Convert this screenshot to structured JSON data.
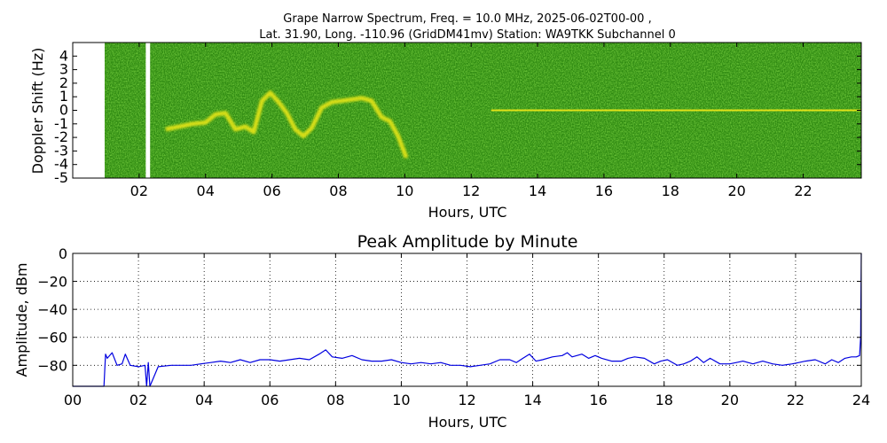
{
  "chart_data": [
    {
      "type": "heatmap",
      "title_lines": [
        "Grape Narrow Spectrum, Freq. = 10.0 MHz, 2025-06-02T00-00 ,",
        "Lat.  31.90, Long. -110.96 (GridDM41mv) Station: WA9TKK Subchannel 0"
      ],
      "xlabel": "Hours, UTC",
      "ylabel": "Doppler Shift (Hz)",
      "xlim": [
        0,
        23.75
      ],
      "ylim": [
        -5,
        5
      ],
      "xticks": [
        2,
        4,
        6,
        8,
        10,
        12,
        14,
        16,
        18,
        20,
        22
      ],
      "xtick_labels": [
        "02",
        "04",
        "06",
        "08",
        "10",
        "12",
        "14",
        "16",
        "18",
        "20",
        "22"
      ],
      "yticks": [
        4,
        3,
        2,
        1,
        0,
        -1,
        -2,
        -3,
        -4,
        -5
      ],
      "ytick_labels": [
        "4",
        "3",
        "2",
        "1",
        "0",
        "-1",
        "-2",
        "-3",
        "-4",
        "-5"
      ],
      "data_gaps_hours": [
        [
          0,
          0.9
        ],
        [
          2.2,
          2.33
        ]
      ],
      "colors": {
        "background": "#2f8a12",
        "signal": "#f2ea18",
        "noise_dark": "#1d5a08",
        "noise_light": "#5db820"
      },
      "doppler_trace": {
        "x": [
          2.8,
          3.2,
          3.6,
          4.0,
          4.3,
          4.6,
          4.9,
          5.2,
          5.45,
          5.7,
          5.95,
          6.2,
          6.45,
          6.7,
          6.95,
          7.2,
          7.5,
          7.8,
          8.1,
          8.4,
          8.7,
          9.0,
          9.3,
          9.55,
          9.8,
          10.05
        ],
        "y": [
          -1.4,
          -1.2,
          -1.0,
          -0.9,
          -0.3,
          -0.2,
          -1.4,
          -1.2,
          -1.6,
          0.7,
          1.3,
          0.6,
          -0.2,
          -1.4,
          -1.9,
          -1.3,
          0.2,
          0.6,
          0.7,
          0.8,
          0.9,
          0.7,
          -0.5,
          -0.8,
          -1.9,
          -3.5
        ]
      },
      "carrier_line": {
        "x_start": 12.6,
        "x_end": 23.75,
        "y": 0
      }
    },
    {
      "type": "line",
      "title": "Peak Amplitude by Minute",
      "xlabel": "Hours, UTC",
      "ylabel": "Amplitude, dBm",
      "xlim": [
        0,
        24
      ],
      "ylim": [
        -95,
        0
      ],
      "xticks": [
        0,
        2,
        4,
        6,
        8,
        10,
        12,
        14,
        16,
        18,
        20,
        22,
        24
      ],
      "xtick_labels": [
        "00",
        "02",
        "04",
        "06",
        "08",
        "10",
        "12",
        "14",
        "16",
        "18",
        "20",
        "22",
        "24"
      ],
      "yticks": [
        0,
        -20,
        -40,
        -60,
        -80
      ],
      "ytick_labels": [
        "0",
        "−20",
        "−40",
        "−60",
        "−80"
      ],
      "grid": true,
      "line_color": "#0000e0",
      "series": [
        {
          "x": [
            0,
            0.95,
            1.0,
            1.05,
            1.2,
            1.35,
            1.5,
            1.6,
            1.75,
            2.0,
            2.2,
            2.25,
            2.3,
            2.35,
            2.6,
            3.0,
            3.3,
            3.6,
            3.9,
            4.2,
            4.5,
            4.8,
            5.1,
            5.4,
            5.7,
            6.0,
            6.3,
            6.6,
            6.9,
            7.2,
            7.5,
            7.7,
            7.9,
            8.2,
            8.5,
            8.8,
            9.1,
            9.4,
            9.7,
            10.0,
            10.3,
            10.6,
            10.9,
            11.2,
            11.5,
            11.8,
            12.1,
            12.4,
            12.7,
            13.0,
            13.3,
            13.5,
            13.7,
            13.9,
            14.1,
            14.3,
            14.6,
            14.9,
            15.05,
            15.2,
            15.5,
            15.7,
            15.9,
            16.1,
            16.4,
            16.7,
            16.9,
            17.1,
            17.4,
            17.7,
            17.9,
            18.1,
            18.4,
            18.6,
            18.8,
            19.0,
            19.2,
            19.4,
            19.7,
            20.0,
            20.2,
            20.4,
            20.7,
            21.0,
            21.3,
            21.6,
            21.9,
            22.1,
            22.3,
            22.6,
            22.9,
            23.1,
            23.3,
            23.5,
            23.7,
            23.85,
            23.95,
            23.98,
            24.0
          ],
          "y": [
            -96,
            -96,
            -72,
            -75,
            -71,
            -80,
            -79,
            -72,
            -80,
            -81,
            -80,
            -96,
            -78,
            -96,
            -81,
            -80,
            -80,
            -80,
            -79,
            -78,
            -77,
            -78,
            -76,
            -78,
            -76,
            -76,
            -77,
            -76,
            -75,
            -76,
            -72,
            -69,
            -74,
            -75,
            -73,
            -76,
            -77,
            -77,
            -76,
            -78,
            -79,
            -78,
            -79,
            -78,
            -80,
            -80,
            -81,
            -80,
            -79,
            -76,
            -76,
            -78,
            -75,
            -72,
            -77,
            -76,
            -74,
            -73,
            -71,
            -74,
            -72,
            -75,
            -73,
            -75,
            -77,
            -77,
            -75,
            -74,
            -75,
            -79,
            -77,
            -76,
            -80,
            -79,
            -77,
            -74,
            -78,
            -75,
            -79,
            -79,
            -78,
            -77,
            -79,
            -77,
            -79,
            -80,
            -79,
            -78,
            -77,
            -76,
            -79,
            -76,
            -78,
            -75,
            -74,
            -74,
            -73,
            -60,
            0
          ]
        }
      ]
    }
  ]
}
